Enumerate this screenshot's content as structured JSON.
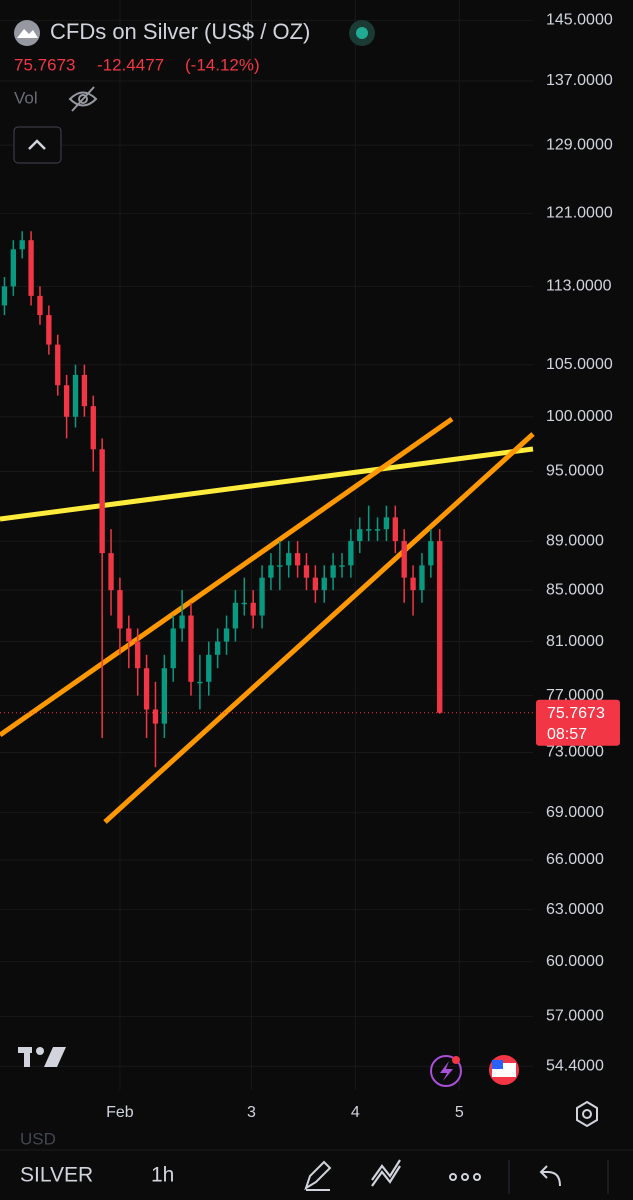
{
  "header": {
    "title": "CFDs on Silver (US$ / OZ)",
    "price": "75.7673",
    "change": "-12.4477",
    "change_pct": "(-14.12%)",
    "vol_label": "Vol",
    "countdown": "08:57"
  },
  "toolbar": {
    "currency": "USD",
    "symbol": "SILVER",
    "interval": "1h"
  },
  "chart_data": {
    "type": "candlestick",
    "log_scale": true,
    "grid": true,
    "up_color": "#089981",
    "down_color": "#f23645",
    "xlim": [
      -0.5,
      59.5
    ],
    "ylim": [
      53.2,
      147.8
    ],
    "xticks": [
      {
        "value": 13,
        "label": "Feb"
      },
      {
        "value": 27.8,
        "label": "3"
      },
      {
        "value": 39.5,
        "label": "4"
      },
      {
        "value": 51.2,
        "label": "5"
      }
    ],
    "yticks": [
      {
        "value": 145,
        "label": "145.0000"
      },
      {
        "value": 137,
        "label": "137.0000"
      },
      {
        "value": 129,
        "label": "129.0000"
      },
      {
        "value": 121,
        "label": "121.0000"
      },
      {
        "value": 113,
        "label": "113.0000"
      },
      {
        "value": 105,
        "label": "105.0000"
      },
      {
        "value": 100,
        "label": "100.0000"
      },
      {
        "value": 95,
        "label": "95.0000"
      },
      {
        "value": 89,
        "label": "89.0000"
      },
      {
        "value": 85,
        "label": "85.0000"
      },
      {
        "value": 81,
        "label": "81.0000"
      },
      {
        "value": 77,
        "label": "77.0000"
      },
      {
        "value": 73,
        "label": "73.0000"
      },
      {
        "value": 69,
        "label": "69.0000"
      },
      {
        "value": 66,
        "label": "66.0000"
      },
      {
        "value": 63,
        "label": "63.0000"
      },
      {
        "value": 60,
        "label": "60.0000"
      },
      {
        "value": 57,
        "label": "57.0000"
      },
      {
        "value": 54.4,
        "label": "54.4000"
      }
    ],
    "open": [
      111,
      113,
      117,
      118,
      112,
      110,
      107,
      103,
      100,
      104,
      101,
      97,
      88,
      85,
      82,
      81,
      79,
      76,
      75,
      79,
      82,
      83,
      78,
      78,
      80,
      81,
      82,
      84,
      84,
      83,
      86,
      87,
      87,
      88,
      87,
      86,
      85,
      86,
      87,
      87,
      89,
      90,
      90,
      90,
      91,
      89,
      86,
      85,
      87,
      89
    ],
    "high": [
      114,
      118,
      119,
      119,
      113,
      111,
      108,
      104,
      105,
      105,
      102,
      98,
      90,
      86,
      83,
      82,
      80,
      78,
      80,
      83,
      85,
      84,
      80,
      81,
      82,
      83,
      85,
      86,
      85,
      87,
      88,
      89,
      89,
      89,
      88,
      87,
      87,
      88,
      88,
      90,
      91,
      92,
      91,
      92,
      92,
      90,
      87,
      88,
      90,
      90
    ],
    "low": [
      110,
      112,
      116,
      111,
      109,
      106,
      102,
      98,
      99,
      100,
      95,
      74,
      83,
      80,
      79,
      77,
      74,
      72,
      74,
      78,
      81,
      77,
      76,
      77,
      79,
      80,
      81,
      83,
      82,
      82,
      85,
      85,
      86,
      86,
      85,
      84,
      84,
      85,
      86,
      86,
      88,
      89,
      89,
      89,
      88,
      84,
      83,
      84,
      86,
      75.7
    ],
    "close": [
      113,
      117,
      118,
      112,
      110,
      107,
      103,
      100,
      104,
      101,
      97,
      88,
      85,
      82,
      81,
      79,
      76,
      75,
      79,
      82,
      83,
      78,
      78,
      80,
      81,
      82,
      84,
      84,
      83,
      86,
      87,
      87,
      88,
      87,
      86,
      85,
      86,
      87,
      87,
      89,
      90,
      90,
      90,
      91,
      89,
      86,
      85,
      87,
      89,
      75.7673
    ]
  }
}
